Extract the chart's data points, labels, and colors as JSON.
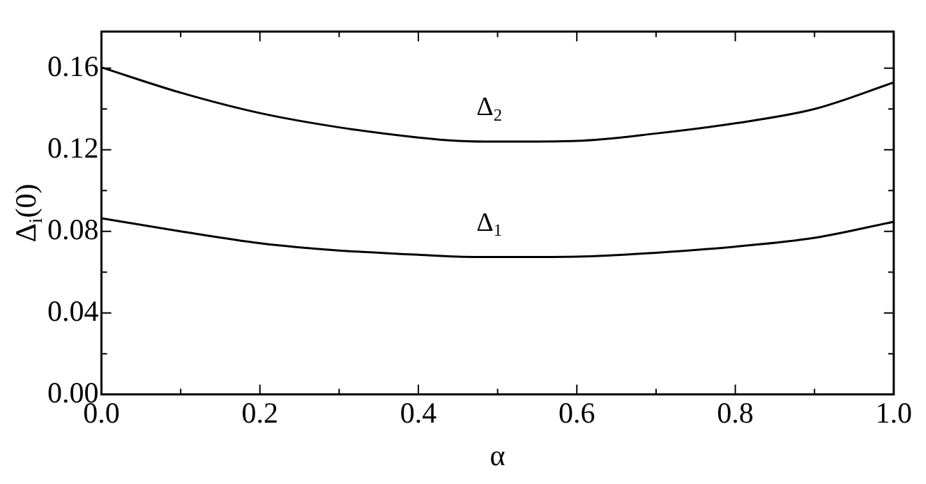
{
  "chart_data": {
    "type": "line",
    "xlabel": "α",
    "ylabel": "Δ$_{i}$(0)",
    "x": [
      0,
      0.1,
      0.2,
      0.3,
      0.4,
      0.45,
      0.5,
      0.6,
      0.7,
      0.8,
      0.9,
      1.0
    ],
    "series": [
      {
        "name": "Δ$_{1}$",
        "color": "#000000",
        "values": [
          0.0864,
          0.08,
          0.0742,
          0.0706,
          0.0685,
          0.0676,
          0.0674,
          0.0676,
          0.0695,
          0.0725,
          0.0768,
          0.0847
        ]
      },
      {
        "name": "Δ$_{2}$",
        "color": "#000000",
        "values": [
          0.1604,
          0.148,
          0.138,
          0.131,
          0.126,
          0.1244,
          0.124,
          0.1244,
          0.128,
          0.133,
          0.14,
          0.153
        ]
      }
    ],
    "xlim": [
      0,
      1
    ],
    "ylim": [
      0,
      0.178
    ],
    "xticks": [
      {
        "value": 0,
        "label": "0.0"
      },
      {
        "value": 0.1,
        "label": null
      },
      {
        "value": 0.2,
        "label": "0.2"
      },
      {
        "value": 0.3,
        "label": null
      },
      {
        "value": 0.4,
        "label": "0.4"
      },
      {
        "value": 0.5,
        "label": null
      },
      {
        "value": 0.6,
        "label": "0.6"
      },
      {
        "value": 0.7,
        "label": null
      },
      {
        "value": 0.8,
        "label": "0.8"
      },
      {
        "value": 0.9,
        "label": null
      },
      {
        "value": 1,
        "label": "1.0"
      }
    ],
    "yticks": [
      {
        "value": 0,
        "label": "0.00"
      },
      {
        "value": 0.02,
        "label": null
      },
      {
        "value": 0.04,
        "label": "0.04"
      },
      {
        "value": 0.06,
        "label": null
      },
      {
        "value": 0.08,
        "label": "0.08"
      },
      {
        "value": 0.1,
        "label": null
      },
      {
        "value": 0.12,
        "label": "0.12"
      },
      {
        "value": 0.14,
        "label": null
      },
      {
        "value": 0.16,
        "label": "0.16"
      }
    ],
    "grid": false,
    "legend": false,
    "marker": "none",
    "line_style": "solid"
  }
}
